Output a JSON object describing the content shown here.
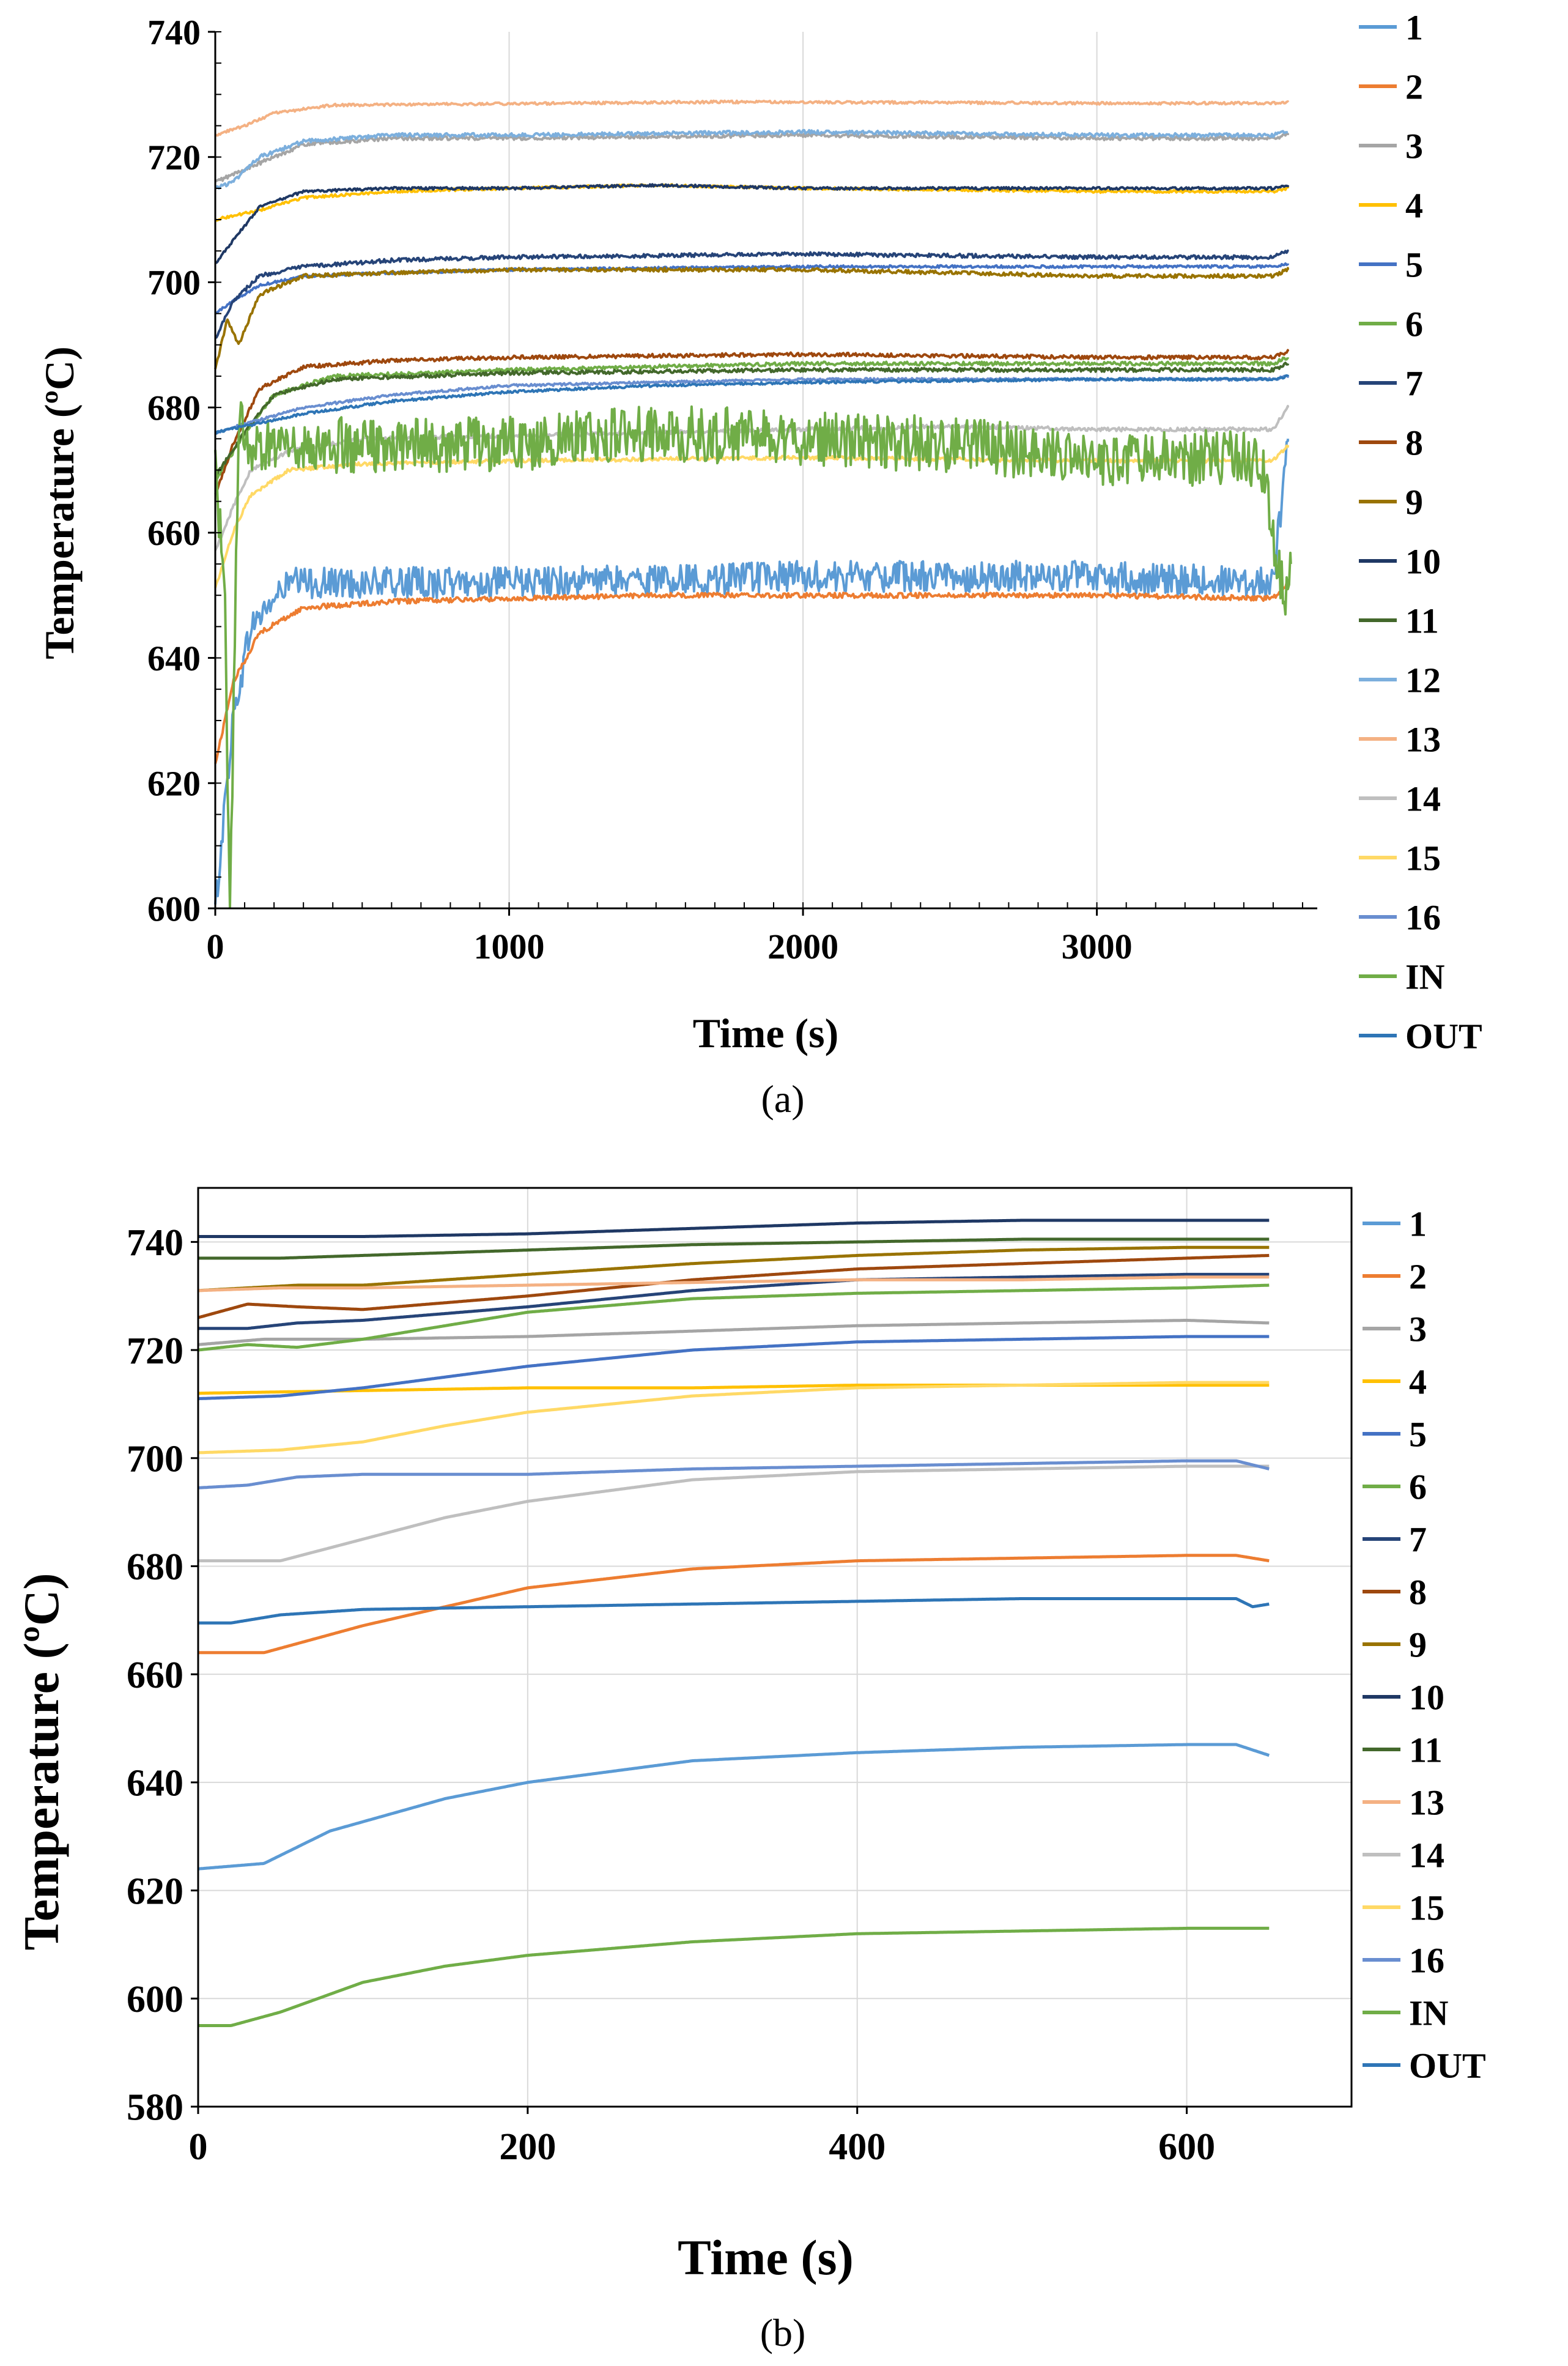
{
  "chart_data": [
    {
      "type": "line",
      "panel_label": "a",
      "caption": "(a)",
      "xlabel": "Time (s)",
      "ylabel": "Temperature (ºC)",
      "xlim": [
        0,
        3750
      ],
      "ylim": [
        600,
        740
      ],
      "xticks": [
        0,
        1000,
        2000,
        3000
      ],
      "yticks": [
        600,
        620,
        640,
        660,
        680,
        700,
        720,
        740
      ],
      "grid": "vertical",
      "legend_position": "right",
      "series": [
        {
          "name": "1",
          "color": "#5B9BD5",
          "x": [
            0,
            60,
            120,
            250,
            500,
            1000,
            2000,
            3000,
            3600,
            3650
          ],
          "values": [
            600,
            630,
            645,
            652,
            652,
            652,
            653,
            653,
            652,
            675
          ],
          "noise": 2.5
        },
        {
          "name": "2",
          "color": "#ED7D31",
          "x": [
            0,
            60,
            150,
            300,
            600,
            1000,
            1500,
            2000,
            3000,
            3600,
            3650
          ],
          "values": [
            623,
            636,
            644,
            648,
            649,
            649.5,
            650,
            650,
            650,
            649.5,
            652
          ],
          "noise": 0.4
        },
        {
          "name": "3",
          "color": "#A5A5A5",
          "x": [
            0,
            100,
            300,
            600,
            1000,
            2000,
            3000,
            3600,
            3650
          ],
          "values": [
            716,
            718,
            722,
            723,
            723,
            723.5,
            723,
            723,
            723.5
          ],
          "noise": 0.3
        },
        {
          "name": "4",
          "color": "#FFC000",
          "x": [
            0,
            150,
            300,
            600,
            1000,
            1500,
            2000,
            3000,
            3600,
            3650
          ],
          "values": [
            710,
            711.5,
            713.5,
            714.5,
            715,
            715.5,
            715,
            714.5,
            714.5,
            715
          ],
          "noise": 0.2
        },
        {
          "name": "5",
          "color": "#4472C4",
          "x": [
            0,
            60,
            150,
            300,
            600,
            1000,
            2000,
            3000,
            3600,
            3650
          ],
          "values": [
            695,
            697,
            699.5,
            701,
            701.5,
            702,
            702.5,
            702.5,
            702.5,
            703
          ],
          "noise": 0.2
        },
        {
          "name": "6",
          "color": "#70AD47",
          "x": [
            0,
            100,
            200,
            400,
            1000,
            2000,
            3000,
            3600,
            3650
          ],
          "values": [
            668,
            676,
            682,
            685,
            686,
            687,
            687,
            687,
            688
          ],
          "noise": 0.3
        },
        {
          "name": "7",
          "color": "#264478",
          "x": [
            0,
            60,
            150,
            300,
            600,
            1000,
            2000,
            3000,
            3600,
            3650
          ],
          "values": [
            691,
            697,
            701,
            702.5,
            703.5,
            704,
            704.5,
            704,
            704,
            705
          ],
          "noise": 0.3
        },
        {
          "name": "8",
          "color": "#9E480E",
          "x": [
            0,
            60,
            150,
            300,
            600,
            1000,
            2000,
            3000,
            3600,
            3650
          ],
          "values": [
            666,
            674,
            683,
            686.5,
            687.5,
            688,
            688.5,
            688,
            688,
            689
          ],
          "noise": 0.3
        },
        {
          "name": "9",
          "color": "#997300",
          "x": [
            0,
            40,
            80,
            150,
            300,
            600,
            1000,
            2000,
            3000,
            3600,
            3650
          ],
          "values": [
            686,
            694,
            690,
            698,
            701,
            701.5,
            702,
            702,
            701,
            701,
            702
          ],
          "noise": 0.3
        },
        {
          "name": "10",
          "color": "#1F3864",
          "x": [
            0,
            50,
            150,
            300,
            600,
            1000,
            1500,
            2000,
            3000,
            3600,
            3650
          ],
          "values": [
            703,
            706,
            712,
            714.5,
            715,
            715,
            715.5,
            715,
            715,
            715,
            715.5
          ],
          "noise": 0.2
        },
        {
          "name": "11",
          "color": "#43682B",
          "x": [
            0,
            100,
            200,
            400,
            1000,
            2000,
            3000,
            3600,
            3650
          ],
          "values": [
            669,
            676,
            682,
            684.5,
            685.5,
            686,
            686,
            686,
            687
          ],
          "noise": 0.3
        },
        {
          "name": "12",
          "color": "#7CAFDD",
          "x": [
            0,
            60,
            150,
            300,
            600,
            1000,
            2000,
            3000,
            3600,
            3650
          ],
          "values": [
            715,
            716,
            720,
            722.5,
            723.5,
            723.5,
            724,
            723.5,
            723.5,
            724
          ],
          "noise": 0.3
        },
        {
          "name": "13",
          "color": "#F4B183",
          "x": [
            0,
            100,
            200,
            400,
            1000,
            1700,
            2500,
            3000,
            3600,
            3650
          ],
          "values": [
            723.5,
            725,
            727,
            728.3,
            728.5,
            728.8,
            728.7,
            728.6,
            728.6,
            728.8
          ],
          "noise": 0.2
        },
        {
          "name": "14",
          "color": "#BFBFBF",
          "x": [
            0,
            60,
            120,
            250,
            500,
            1000,
            2000,
            2500,
            3000,
            3600,
            3650
          ],
          "values": [
            657,
            664,
            670,
            673,
            675,
            675.5,
            676.5,
            677,
            676.5,
            676.5,
            680
          ],
          "noise": 0.3
        },
        {
          "name": "15",
          "color": "#FFD966",
          "x": [
            0,
            60,
            120,
            250,
            500,
            1000,
            2000,
            3000,
            3600,
            3650
          ],
          "values": [
            651,
            660,
            666,
            670,
            671,
            671.5,
            672,
            671.5,
            671.5,
            674
          ],
          "noise": 0.3
        },
        {
          "name": "16",
          "color": "#698ED0",
          "x": [
            0,
            150,
            300,
            600,
            1000,
            2000,
            3000,
            3600,
            3650
          ],
          "values": [
            676,
            678,
            680,
            682,
            683.5,
            684.5,
            684.5,
            684.5,
            685
          ],
          "noise": 0.2
        },
        {
          "name": "IN",
          "color": "#70AD47",
          "x": [
            0,
            30,
            50,
            80,
            120,
            200,
            500,
            1000,
            1500,
            2000,
            2500,
            3000,
            3500,
            3560,
            3600,
            3640,
            3660
          ],
          "values": [
            670,
            655,
            600,
            680,
            672,
            674,
            674,
            674,
            676,
            675,
            674,
            672,
            672,
            671,
            660,
            648,
            655
          ],
          "noise": 4.5
        },
        {
          "name": "OUT",
          "color": "#2E75B6",
          "x": [
            0,
            150,
            300,
            600,
            1000,
            1500,
            2000,
            3000,
            3600,
            3650
          ],
          "values": [
            676,
            677.5,
            679,
            681,
            682.5,
            683.5,
            684,
            684.5,
            684.5,
            685
          ],
          "noise": 0.2
        }
      ]
    },
    {
      "type": "line",
      "panel_label": "b",
      "caption": "(b)",
      "xlabel": "Time (s)",
      "ylabel": "Temperature (ºC)",
      "xlim": [
        0,
        700
      ],
      "ylim": [
        580,
        750
      ],
      "xticks": [
        0,
        200,
        400,
        600
      ],
      "yticks": [
        580,
        600,
        620,
        640,
        660,
        680,
        700,
        720,
        740
      ],
      "grid": "both",
      "legend_position": "right",
      "series": [
        {
          "name": "1",
          "color": "#5B9BD5",
          "x": [
            0,
            40,
            80,
            150,
            200,
            300,
            400,
            500,
            600,
            630,
            650
          ],
          "values": [
            624,
            625,
            631,
            637,
            640,
            644,
            645.5,
            646.5,
            647,
            647,
            645
          ]
        },
        {
          "name": "2",
          "color": "#ED7D31",
          "x": [
            0,
            40,
            100,
            200,
            300,
            400,
            500,
            600,
            630,
            650
          ],
          "values": [
            664,
            664,
            669,
            676,
            679.5,
            681,
            681.5,
            682,
            682,
            681
          ]
        },
        {
          "name": "3",
          "color": "#A5A5A5",
          "x": [
            0,
            40,
            100,
            200,
            300,
            400,
            500,
            600,
            650
          ],
          "values": [
            721,
            722,
            722,
            722.5,
            723.5,
            724.5,
            725,
            725.5,
            725
          ]
        },
        {
          "name": "4",
          "color": "#FFC000",
          "x": [
            0,
            100,
            200,
            300,
            400,
            500,
            600,
            650
          ],
          "values": [
            712,
            712.5,
            713,
            713,
            713.5,
            713.5,
            713.5,
            713.5
          ]
        },
        {
          "name": "5",
          "color": "#4472C4",
          "x": [
            0,
            50,
            100,
            200,
            300,
            400,
            500,
            600,
            650
          ],
          "values": [
            711,
            711.5,
            713,
            717,
            720,
            721.5,
            722,
            722.5,
            722.5
          ]
        },
        {
          "name": "6",
          "color": "#70AD47",
          "x": [
            0,
            30,
            60,
            100,
            200,
            300,
            400,
            500,
            600,
            650
          ],
          "values": [
            720,
            721,
            720.5,
            722,
            727,
            729.5,
            730.5,
            731,
            731.5,
            732
          ]
        },
        {
          "name": "7",
          "color": "#264478",
          "x": [
            0,
            30,
            60,
            100,
            200,
            300,
            400,
            500,
            600,
            650
          ],
          "values": [
            724,
            724,
            725,
            725.5,
            728,
            731,
            733,
            733.5,
            734,
            734
          ]
        },
        {
          "name": "8",
          "color": "#9E480E",
          "x": [
            0,
            30,
            60,
            100,
            200,
            300,
            400,
            500,
            600,
            650
          ],
          "values": [
            726,
            728.5,
            728,
            727.5,
            730,
            733,
            735,
            736,
            737,
            737.5
          ]
        },
        {
          "name": "9",
          "color": "#997300",
          "x": [
            0,
            30,
            60,
            100,
            200,
            300,
            400,
            500,
            600,
            650
          ],
          "values": [
            731,
            731.5,
            732,
            732,
            734,
            736,
            737.5,
            738.5,
            739,
            739
          ]
        },
        {
          "name": "10",
          "color": "#1F3864",
          "x": [
            0,
            100,
            200,
            300,
            400,
            500,
            600,
            650
          ],
          "values": [
            741,
            741,
            741.5,
            742.5,
            743.5,
            744,
            744,
            744
          ]
        },
        {
          "name": "11",
          "color": "#43682B",
          "x": [
            0,
            50,
            100,
            200,
            300,
            400,
            500,
            600,
            650
          ],
          "values": [
            737,
            737,
            737.5,
            738.5,
            739.5,
            740,
            740.5,
            740.5,
            740.5
          ]
        },
        {
          "name": "13",
          "color": "#F4B183",
          "x": [
            0,
            50,
            100,
            200,
            300,
            400,
            500,
            600,
            650
          ],
          "values": [
            731,
            731.5,
            731.5,
            732,
            732.5,
            733,
            733,
            733.5,
            733.5
          ]
        },
        {
          "name": "14",
          "color": "#BFBFBF",
          "x": [
            0,
            50,
            100,
            150,
            200,
            300,
            400,
            500,
            600,
            650
          ],
          "values": [
            681,
            681,
            685,
            689,
            692,
            696,
            697.5,
            698,
            698.5,
            698.5
          ]
        },
        {
          "name": "15",
          "color": "#FFD966",
          "x": [
            0,
            50,
            100,
            150,
            200,
            300,
            400,
            500,
            600,
            650
          ],
          "values": [
            701,
            701.5,
            703,
            706,
            708.5,
            711.5,
            713,
            713.5,
            714,
            714
          ]
        },
        {
          "name": "16",
          "color": "#698ED0",
          "x": [
            0,
            30,
            60,
            100,
            200,
            300,
            400,
            500,
            600,
            630,
            650
          ],
          "values": [
            694.5,
            695,
            696.5,
            697,
            697,
            698,
            698.5,
            699,
            699.5,
            699.5,
            698
          ]
        },
        {
          "name": "IN",
          "color": "#70AD47",
          "x": [
            0,
            20,
            50,
            100,
            150,
            200,
            300,
            400,
            500,
            600,
            650
          ],
          "values": [
            595,
            595,
            597.5,
            603,
            606,
            608,
            610.5,
            612,
            612.5,
            613,
            613
          ]
        },
        {
          "name": "OUT",
          "color": "#2E75B6",
          "x": [
            0,
            20,
            50,
            100,
            200,
            300,
            400,
            500,
            600,
            630,
            640,
            650
          ],
          "values": [
            669.5,
            669.5,
            671,
            672,
            672.5,
            673,
            673.5,
            674,
            674,
            674,
            672.5,
            673
          ]
        }
      ]
    }
  ]
}
